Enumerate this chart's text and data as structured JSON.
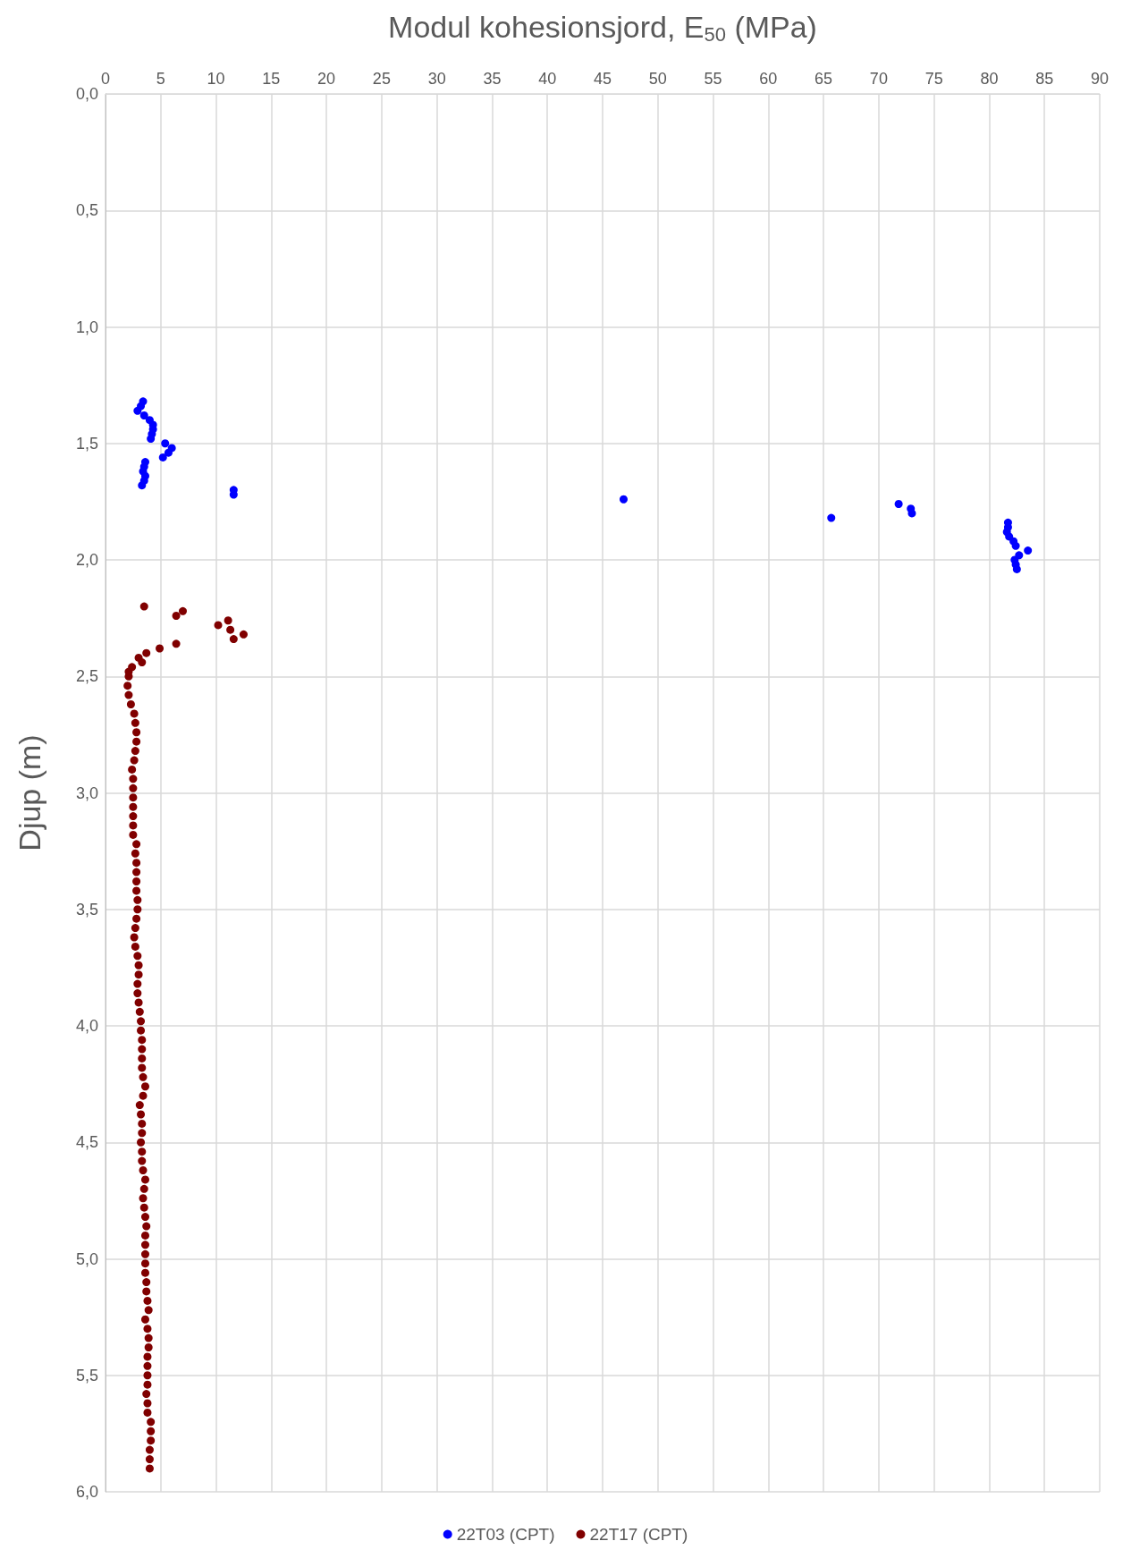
{
  "chart_data": {
    "type": "scatter",
    "xlabel": "Modul kohesionsjord, E$_{50}$ (MPa)",
    "ylabel": "Djup (m)",
    "xlim": [
      0,
      90
    ],
    "xticks": [
      0,
      5,
      10,
      15,
      20,
      25,
      30,
      35,
      40,
      45,
      50,
      55,
      60,
      65,
      70,
      75,
      80,
      85,
      90
    ],
    "ylim": [
      6,
      0
    ],
    "yticks": [
      {
        "value": 0,
        "label": "0,0"
      },
      {
        "value": 0.5,
        "label": "0,5"
      },
      {
        "value": 1,
        "label": "1,0"
      },
      {
        "value": 1.5,
        "label": "1,5"
      },
      {
        "value": 2,
        "label": "2,0"
      },
      {
        "value": 2.5,
        "label": "2,5"
      },
      {
        "value": 3,
        "label": "3,0"
      },
      {
        "value": 3.5,
        "label": "3,5"
      },
      {
        "value": 4,
        "label": "4,0"
      },
      {
        "value": 4.5,
        "label": "4,5"
      },
      {
        "value": 5,
        "label": "5,0"
      },
      {
        "value": 5.5,
        "label": "5,5"
      },
      {
        "value": 6,
        "label": "6,0"
      }
    ],
    "grid": true,
    "legend": "bottom",
    "marker": "circle",
    "series": [
      {
        "name": "22T03 (CPT)",
        "color": "#0000ff",
        "x": [
          3.4,
          3.2,
          2.9,
          3.5,
          4.0,
          4.3,
          4.3,
          4.2,
          4.1,
          5.4,
          6.0,
          5.7,
          5.2,
          3.6,
          3.5,
          3.4,
          3.6,
          3.5,
          3.3,
          11.6,
          11.6,
          46.9,
          71.8,
          72.9,
          73.0,
          65.7,
          81.7,
          81.7,
          81.6,
          81.8,
          82.2,
          82.4,
          83.5,
          82.7,
          82.3,
          82.4,
          82.5
        ],
        "values": [
          1.32,
          1.34,
          1.36,
          1.38,
          1.4,
          1.42,
          1.44,
          1.46,
          1.48,
          1.5,
          1.52,
          1.54,
          1.56,
          1.58,
          1.6,
          1.62,
          1.64,
          1.66,
          1.68,
          1.7,
          1.72,
          1.74,
          1.76,
          1.78,
          1.8,
          1.82,
          1.84,
          1.86,
          1.88,
          1.9,
          1.92,
          1.94,
          1.96,
          1.98,
          2.0,
          2.02,
          2.04
        ]
      },
      {
        "name": "22T17 (CPT)",
        "color": "#800000",
        "x": [
          3.5,
          7.0,
          6.4,
          11.1,
          10.2,
          11.3,
          12.5,
          11.6,
          6.4,
          4.9,
          3.7,
          3.0,
          3.3,
          2.4,
          2.1,
          2.1,
          2.0,
          2.1,
          2.3,
          2.6,
          2.7,
          2.8,
          2.8,
          2.7,
          2.6,
          2.4,
          2.5,
          2.5,
          2.5,
          2.5,
          2.5,
          2.5,
          2.5,
          2.8,
          2.7,
          2.8,
          2.8,
          2.8,
          2.8,
          2.9,
          2.9,
          2.8,
          2.7,
          2.6,
          2.7,
          2.9,
          3.0,
          3.0,
          2.9,
          2.9,
          3.0,
          3.1,
          3.2,
          3.2,
          3.3,
          3.3,
          3.3,
          3.3,
          3.4,
          3.6,
          3.4,
          3.1,
          3.2,
          3.3,
          3.3,
          3.2,
          3.3,
          3.3,
          3.4,
          3.6,
          3.5,
          3.4,
          3.5,
          3.6,
          3.7,
          3.6,
          3.6,
          3.6,
          3.6,
          3.6,
          3.7,
          3.7,
          3.8,
          3.9,
          3.6,
          3.8,
          3.9,
          3.9,
          3.8,
          3.8,
          3.8,
          3.8,
          3.7,
          3.8,
          3.8,
          4.1,
          4.1,
          4.1,
          4.0,
          4.0,
          4.0
        ],
        "values": [
          2.2,
          2.22,
          2.24,
          2.26,
          2.28,
          2.3,
          2.32,
          2.34,
          2.36,
          2.38,
          2.4,
          2.42,
          2.44,
          2.46,
          2.48,
          2.5,
          2.54,
          2.58,
          2.62,
          2.66,
          2.7,
          2.74,
          2.78,
          2.82,
          2.86,
          2.9,
          2.94,
          2.98,
          3.02,
          3.06,
          3.1,
          3.14,
          3.18,
          3.22,
          3.26,
          3.3,
          3.34,
          3.38,
          3.42,
          3.46,
          3.5,
          3.54,
          3.58,
          3.62,
          3.66,
          3.7,
          3.74,
          3.78,
          3.82,
          3.86,
          3.9,
          3.94,
          3.98,
          4.02,
          4.06,
          4.1,
          4.14,
          4.18,
          4.22,
          4.26,
          4.3,
          4.34,
          4.38,
          4.42,
          4.46,
          4.5,
          4.54,
          4.58,
          4.62,
          4.66,
          4.7,
          4.74,
          4.78,
          4.82,
          4.86,
          4.9,
          4.94,
          4.98,
          5.02,
          5.06,
          5.1,
          5.14,
          5.18,
          5.22,
          5.26,
          5.3,
          5.34,
          5.38,
          5.42,
          5.46,
          5.5,
          5.54,
          5.58,
          5.62,
          5.66,
          5.7,
          5.74,
          5.78,
          5.82,
          5.86,
          5.9
        ]
      }
    ]
  }
}
